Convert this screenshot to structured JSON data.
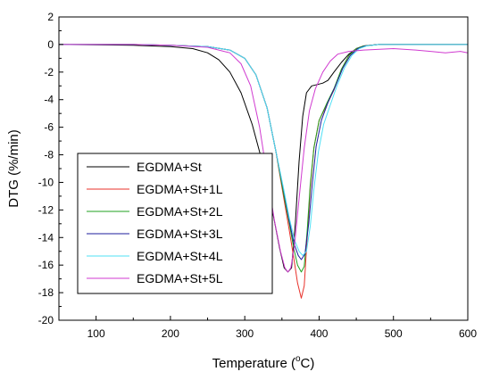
{
  "chart_data": {
    "type": "line",
    "xlabel": "Temperature (",
    "xlabel_unit_sup": "o",
    "xlabel_unit_tail": "C)",
    "ylabel": "DTG (%/min)",
    "xlim": [
      50,
      600
    ],
    "ylim": [
      -20,
      2
    ],
    "x_ticks": [
      100,
      200,
      300,
      400,
      500,
      600
    ],
    "y_ticks": [
      2,
      0,
      -2,
      -4,
      -6,
      -8,
      -10,
      -12,
      -14,
      -16,
      -18,
      -20
    ],
    "grid": false,
    "legend_placement": "lower-left",
    "series": [
      {
        "name": "EGDMA+St",
        "color": "#000000",
        "points": [
          [
            50,
            0
          ],
          [
            150,
            -0.05
          ],
          [
            200,
            -0.15
          ],
          [
            230,
            -0.3
          ],
          [
            250,
            -0.6
          ],
          [
            265,
            -1.1
          ],
          [
            280,
            -2.0
          ],
          [
            295,
            -3.5
          ],
          [
            310,
            -5.8
          ],
          [
            325,
            -8.8
          ],
          [
            337,
            -12.0
          ],
          [
            347,
            -14.8
          ],
          [
            353,
            -16.2
          ],
          [
            358,
            -16.5
          ],
          [
            363,
            -16.2
          ],
          [
            368,
            -13.0
          ],
          [
            373,
            -8.5
          ],
          [
            378,
            -5.2
          ],
          [
            383,
            -3.5
          ],
          [
            390,
            -3.0
          ],
          [
            398,
            -2.9
          ],
          [
            405,
            -2.8
          ],
          [
            412,
            -2.6
          ],
          [
            420,
            -2.0
          ],
          [
            430,
            -1.3
          ],
          [
            440,
            -0.7
          ],
          [
            450,
            -0.3
          ],
          [
            460,
            -0.1
          ],
          [
            480,
            0
          ],
          [
            600,
            0
          ]
        ]
      },
      {
        "name": "EGDMA+St+1L",
        "color": "#e8312a",
        "points": [
          [
            50,
            0
          ],
          [
            150,
            0
          ],
          [
            200,
            -0.05
          ],
          [
            250,
            -0.15
          ],
          [
            280,
            -0.4
          ],
          [
            300,
            -1.0
          ],
          [
            315,
            -2.2
          ],
          [
            330,
            -4.6
          ],
          [
            342,
            -7.8
          ],
          [
            352,
            -11.0
          ],
          [
            360,
            -13.5
          ],
          [
            366,
            -15.5
          ],
          [
            371,
            -17.3
          ],
          [
            376,
            -18.4
          ],
          [
            380,
            -17.5
          ],
          [
            384,
            -14.0
          ],
          [
            388,
            -10.5
          ],
          [
            393,
            -7.5
          ],
          [
            400,
            -5.5
          ],
          [
            410,
            -4.4
          ],
          [
            420,
            -3.3
          ],
          [
            430,
            -1.8
          ],
          [
            440,
            -0.8
          ],
          [
            450,
            -0.3
          ],
          [
            460,
            -0.1
          ],
          [
            480,
            0
          ],
          [
            600,
            0
          ]
        ]
      },
      {
        "name": "EGDMA+St+2L",
        "color": "#1fa01f",
        "points": [
          [
            50,
            0
          ],
          [
            150,
            0
          ],
          [
            200,
            -0.05
          ],
          [
            250,
            -0.15
          ],
          [
            280,
            -0.4
          ],
          [
            300,
            -1.0
          ],
          [
            315,
            -2.2
          ],
          [
            330,
            -4.6
          ],
          [
            342,
            -7.8
          ],
          [
            352,
            -10.8
          ],
          [
            360,
            -13.0
          ],
          [
            366,
            -14.8
          ],
          [
            371,
            -16.0
          ],
          [
            376,
            -16.5
          ],
          [
            380,
            -16.1
          ],
          [
            384,
            -13.5
          ],
          [
            388,
            -10.2
          ],
          [
            393,
            -7.5
          ],
          [
            400,
            -5.5
          ],
          [
            410,
            -4.3
          ],
          [
            420,
            -3.2
          ],
          [
            430,
            -1.8
          ],
          [
            440,
            -0.8
          ],
          [
            450,
            -0.3
          ],
          [
            460,
            -0.1
          ],
          [
            480,
            0
          ],
          [
            600,
            0
          ]
        ]
      },
      {
        "name": "EGDMA+St+3L",
        "color": "#1c1c9c",
        "points": [
          [
            50,
            0
          ],
          [
            150,
            0
          ],
          [
            200,
            -0.05
          ],
          [
            250,
            -0.15
          ],
          [
            280,
            -0.4
          ],
          [
            300,
            -1.0
          ],
          [
            315,
            -2.2
          ],
          [
            330,
            -4.6
          ],
          [
            342,
            -7.8
          ],
          [
            352,
            -10.5
          ],
          [
            360,
            -12.8
          ],
          [
            366,
            -14.4
          ],
          [
            372,
            -15.3
          ],
          [
            376,
            -15.6
          ],
          [
            381,
            -15.2
          ],
          [
            386,
            -13.0
          ],
          [
            391,
            -10.0
          ],
          [
            396,
            -7.4
          ],
          [
            403,
            -5.5
          ],
          [
            412,
            -4.2
          ],
          [
            422,
            -3.0
          ],
          [
            432,
            -1.7
          ],
          [
            442,
            -0.8
          ],
          [
            452,
            -0.3
          ],
          [
            462,
            -0.1
          ],
          [
            480,
            0
          ],
          [
            600,
            0
          ]
        ]
      },
      {
        "name": "EGDMA+St+4L",
        "color": "#4fe0f5",
        "points": [
          [
            50,
            0
          ],
          [
            150,
            0
          ],
          [
            200,
            -0.05
          ],
          [
            250,
            -0.15
          ],
          [
            280,
            -0.4
          ],
          [
            300,
            -1.0
          ],
          [
            315,
            -2.2
          ],
          [
            330,
            -4.6
          ],
          [
            342,
            -7.8
          ],
          [
            352,
            -10.4
          ],
          [
            360,
            -12.6
          ],
          [
            367,
            -14.2
          ],
          [
            373,
            -15.0
          ],
          [
            378,
            -15.3
          ],
          [
            383,
            -15.0
          ],
          [
            388,
            -13.2
          ],
          [
            393,
            -10.5
          ],
          [
            399,
            -7.8
          ],
          [
            406,
            -5.8
          ],
          [
            415,
            -4.4
          ],
          [
            424,
            -3.0
          ],
          [
            434,
            -1.7
          ],
          [
            444,
            -0.8
          ],
          [
            454,
            -0.3
          ],
          [
            464,
            -0.1
          ],
          [
            480,
            0
          ],
          [
            600,
            0
          ]
        ]
      },
      {
        "name": "EGDMA+St+5L",
        "color": "#d03ad0",
        "points": [
          [
            50,
            0
          ],
          [
            150,
            0
          ],
          [
            200,
            -0.05
          ],
          [
            250,
            -0.2
          ],
          [
            280,
            -0.6
          ],
          [
            295,
            -1.4
          ],
          [
            308,
            -3.0
          ],
          [
            320,
            -6.0
          ],
          [
            330,
            -9.5
          ],
          [
            340,
            -12.8
          ],
          [
            348,
            -15.0
          ],
          [
            354,
            -16.2
          ],
          [
            358,
            -16.5
          ],
          [
            362,
            -16.2
          ],
          [
            367,
            -14.5
          ],
          [
            373,
            -11.2
          ],
          [
            380,
            -7.5
          ],
          [
            387,
            -4.8
          ],
          [
            395,
            -3.2
          ],
          [
            405,
            -2.0
          ],
          [
            415,
            -1.2
          ],
          [
            425,
            -0.7
          ],
          [
            440,
            -0.5
          ],
          [
            460,
            -0.4
          ],
          [
            500,
            -0.3
          ],
          [
            530,
            -0.4
          ],
          [
            550,
            -0.5
          ],
          [
            570,
            -0.6
          ],
          [
            590,
            -0.5
          ],
          [
            600,
            -0.6
          ]
        ]
      }
    ]
  }
}
